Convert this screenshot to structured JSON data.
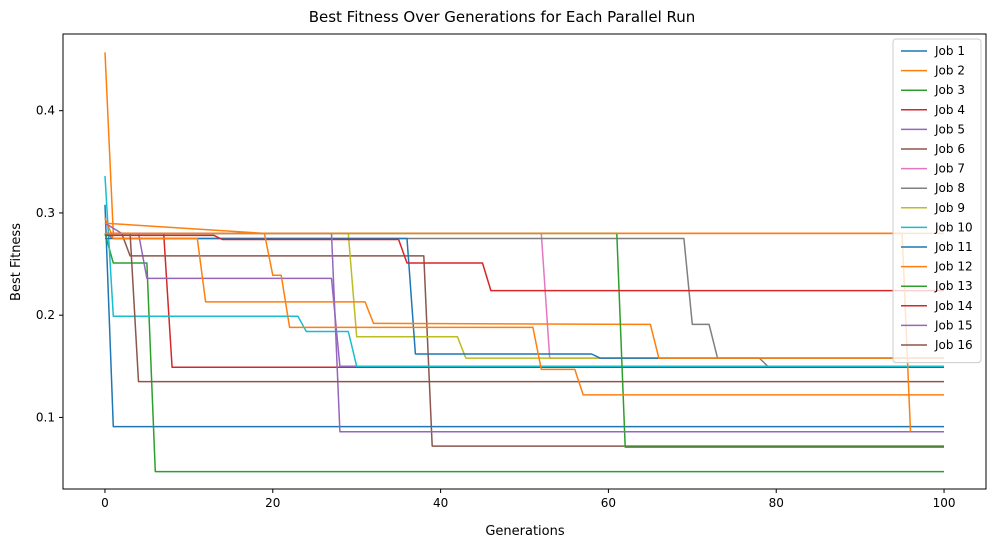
{
  "chart_data": {
    "type": "line",
    "title": "Best Fitness Over Generations for Each Parallel Run",
    "xlabel": "Generations",
    "ylabel": "Best Fitness",
    "xlim": [
      -5,
      105
    ],
    "ylim": [
      0.03,
      0.475
    ],
    "xticks": [
      0,
      20,
      40,
      60,
      80,
      100
    ],
    "yticks": [
      0.1,
      0.2,
      0.3,
      0.4
    ],
    "ytick_labels": [
      "0.1",
      "0.2",
      "0.3",
      "0.4"
    ],
    "grid": false,
    "legend_position": "top-right",
    "series": [
      {
        "name": "Job 1",
        "color": "#1f77b4",
        "points": [
          [
            0,
            0.308
          ],
          [
            1,
            0.091
          ],
          [
            100,
            0.091
          ]
        ]
      },
      {
        "name": "Job 2",
        "color": "#ff7f0e",
        "points": [
          [
            0,
            0.457
          ],
          [
            1,
            0.28
          ],
          [
            100,
            0.28
          ]
        ]
      },
      {
        "name": "Job 3",
        "color": "#2ca02c",
        "points": [
          [
            0,
            0.28
          ],
          [
            1,
            0.251
          ],
          [
            5,
            0.251
          ],
          [
            6,
            0.047
          ],
          [
            100,
            0.047
          ]
        ]
      },
      {
        "name": "Job 4",
        "color": "#d62728",
        "points": [
          [
            0,
            0.28
          ],
          [
            7,
            0.28
          ],
          [
            8,
            0.149
          ],
          [
            100,
            0.149
          ]
        ]
      },
      {
        "name": "Job 5",
        "color": "#9467bd",
        "points": [
          [
            0,
            0.28
          ],
          [
            4,
            0.28
          ],
          [
            5,
            0.236
          ],
          [
            27,
            0.236
          ],
          [
            28,
            0.15
          ],
          [
            100,
            0.15
          ]
        ]
      },
      {
        "name": "Job 6",
        "color": "#8c564b",
        "points": [
          [
            0,
            0.28
          ],
          [
            2,
            0.28
          ],
          [
            3,
            0.258
          ],
          [
            38,
            0.258
          ],
          [
            39,
            0.072
          ],
          [
            100,
            0.072
          ]
        ]
      },
      {
        "name": "Job 7",
        "color": "#e377c2",
        "points": [
          [
            0,
            0.28
          ],
          [
            52,
            0.28
          ],
          [
            53,
            0.158
          ],
          [
            100,
            0.158
          ]
        ]
      },
      {
        "name": "Job 8",
        "color": "#7f7f7f",
        "points": [
          [
            0,
            0.28
          ],
          [
            1,
            0.275
          ],
          [
            69,
            0.275
          ],
          [
            70,
            0.191
          ],
          [
            72,
            0.191
          ],
          [
            73,
            0.158
          ],
          [
            78,
            0.158
          ],
          [
            79,
            0.15
          ],
          [
            100,
            0.15
          ]
        ]
      },
      {
        "name": "Job 9",
        "color": "#bcbd22",
        "points": [
          [
            0,
            0.28
          ],
          [
            29,
            0.28
          ],
          [
            30,
            0.179
          ],
          [
            42,
            0.179
          ],
          [
            43,
            0.158
          ],
          [
            100,
            0.158
          ]
        ]
      },
      {
        "name": "Job 10",
        "color": "#17becf",
        "points": [
          [
            0,
            0.336
          ],
          [
            1,
            0.199
          ],
          [
            23,
            0.199
          ],
          [
            24,
            0.184
          ],
          [
            29,
            0.184
          ],
          [
            30,
            0.15
          ],
          [
            100,
            0.15
          ]
        ]
      },
      {
        "name": "Job 11",
        "color": "#1f77b4",
        "points": [
          [
            0,
            0.275
          ],
          [
            36,
            0.275
          ],
          [
            37,
            0.162
          ],
          [
            58,
            0.162
          ],
          [
            59,
            0.158
          ],
          [
            100,
            0.158
          ]
        ]
      },
      {
        "name": "Job 12",
        "color": "#ff7f0e",
        "points": [
          [
            0,
            0.295
          ],
          [
            1,
            0.275
          ],
          [
            11,
            0.275
          ],
          [
            12,
            0.213
          ],
          [
            31,
            0.213
          ],
          [
            32,
            0.192
          ],
          [
            65,
            0.191
          ],
          [
            66,
            0.158
          ],
          [
            100,
            0.158
          ]
        ]
      },
      {
        "name": "Job 13",
        "color": "#2ca02c",
        "points": [
          [
            0,
            0.28
          ],
          [
            61,
            0.28
          ],
          [
            62,
            0.071
          ],
          [
            100,
            0.071
          ]
        ]
      },
      {
        "name": "Job 14",
        "color": "#d62728",
        "points": [
          [
            0,
            0.278
          ],
          [
            13,
            0.278
          ],
          [
            14,
            0.274
          ],
          [
            35,
            0.274
          ],
          [
            36,
            0.251
          ],
          [
            45,
            0.251
          ],
          [
            46,
            0.224
          ],
          [
            100,
            0.224
          ]
        ]
      },
      {
        "name": "Job 15",
        "color": "#9467bd",
        "points": [
          [
            0,
            0.29
          ],
          [
            2,
            0.28
          ],
          [
            27,
            0.28
          ],
          [
            28,
            0.086
          ],
          [
            100,
            0.086
          ]
        ]
      },
      {
        "name": "Job 16",
        "color": "#8c564b",
        "points": [
          [
            0,
            0.28
          ],
          [
            3,
            0.28
          ],
          [
            4,
            0.135
          ],
          [
            100,
            0.135
          ]
        ]
      },
      {
        "name": "",
        "color": "#ff7f0e",
        "points": [
          [
            0,
            0.29
          ],
          [
            19,
            0.28
          ],
          [
            20,
            0.239
          ],
          [
            21,
            0.239
          ],
          [
            22,
            0.188
          ],
          [
            51,
            0.188
          ],
          [
            52,
            0.147
          ],
          [
            56,
            0.147
          ],
          [
            57,
            0.122
          ],
          [
            100,
            0.122
          ]
        ]
      },
      {
        "name": "",
        "color": "#ff7f0e",
        "points": [
          [
            0,
            0.28
          ],
          [
            95,
            0.28
          ],
          [
            96,
            0.086
          ]
        ]
      }
    ]
  }
}
